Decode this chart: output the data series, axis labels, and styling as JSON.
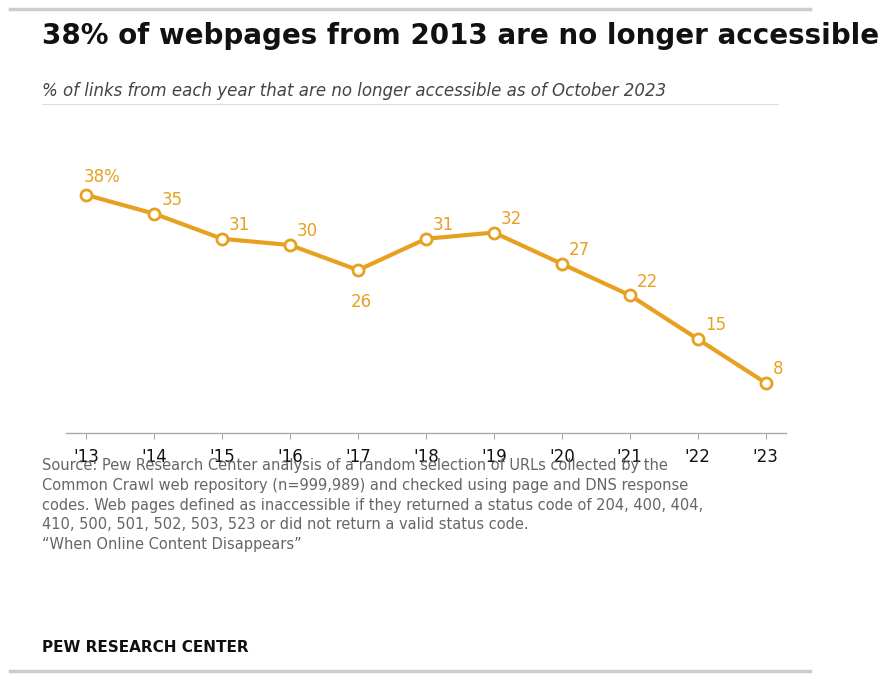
{
  "title": "38% of webpages from 2013 are no longer accessible",
  "subtitle": "% of links from each year that are no longer accessible as of October 2023",
  "years": [
    "'13",
    "'14",
    "'15",
    "'16",
    "'17",
    "'18",
    "'19",
    "'20",
    "'21",
    "'22",
    "'23"
  ],
  "values": [
    38,
    35,
    31,
    30,
    26,
    31,
    32,
    27,
    22,
    15,
    8
  ],
  "line_color": "#E8A020",
  "marker_face_color": "#FFFFFF",
  "marker_edge_color": "#E8A020",
  "background_color": "#FFFFFF",
  "source_text": "Source: Pew Research Center analysis of a random selection of URLs collected by the\nCommon Crawl web repository (n=999,989) and checked using page and DNS response\ncodes. Web pages defined as inaccessible if they returned a status code of 204, 400, 404,\n410, 500, 501, 502, 503, 523 or did not return a valid status code.\n“When Online Content Disappears”",
  "branding_text": "PEW RESEARCH CENTER",
  "title_fontsize": 20,
  "subtitle_fontsize": 12,
  "label_fontsize": 12,
  "tick_fontsize": 12,
  "source_fontsize": 10.5,
  "branding_fontsize": 11,
  "top_line_color": "#CCCCCC",
  "axis_line_color": "#AAAAAA",
  "text_color_dark": "#111111",
  "text_color_mid": "#444444",
  "text_color_light": "#666666"
}
